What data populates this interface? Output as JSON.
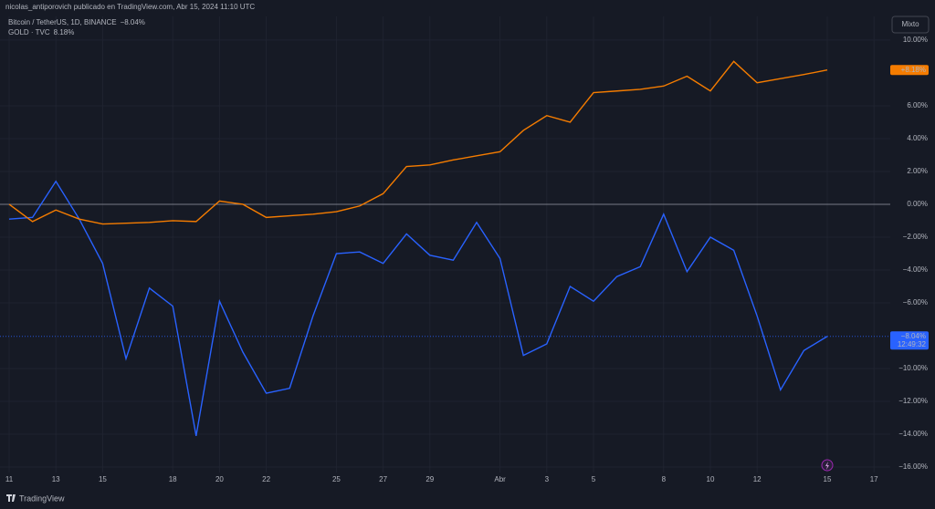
{
  "chart_data": {
    "type": "line",
    "title": "nicolas_antiporovich publicado en TradingView.com, Abr 15, 2024 11:10 UTC",
    "mode_button": "Mixto",
    "brand": "TradingView",
    "categories": [
      "11",
      null,
      "13",
      null,
      "15",
      null,
      null,
      "18",
      null,
      "20",
      null,
      "22",
      null,
      null,
      "25",
      null,
      "27",
      null,
      "29",
      null,
      null,
      "Abr",
      null,
      "3",
      null,
      "5",
      null,
      null,
      "8",
      null,
      "10",
      null,
      "12",
      null,
      null,
      "15",
      null,
      "17"
    ],
    "series": [
      {
        "name": "Bitcoin / TetherUS, 1D, BINANCE",
        "color": "#2962ff",
        "legend_value": "−8.04%",
        "axis_label": "−8.04%",
        "countdown": "12:49:32",
        "values": [
          -0.9,
          -0.8,
          1.4,
          -0.9,
          -3.6,
          -9.4,
          -5.1,
          -6.2,
          -14.1,
          -5.9,
          -9.0,
          -11.5,
          -11.2,
          -6.8,
          -3.0,
          -2.9,
          -3.6,
          -1.8,
          -3.1,
          -3.4,
          -1.1,
          -3.3,
          -9.2,
          -8.5,
          -5.0,
          -5.9,
          -4.4,
          -3.8,
          -0.6,
          -4.1,
          -2.0,
          -2.8,
          -6.8,
          -11.3,
          -8.9,
          -8.04,
          null,
          null
        ]
      },
      {
        "name": "GOLD · TVC",
        "color": "#f57c00",
        "legend_value": "8.18%",
        "axis_label": "+8.18%",
        "values": [
          0.0,
          -1.05,
          -0.35,
          -0.9,
          -1.2,
          -1.15,
          -1.1,
          -1.0,
          -1.05,
          0.2,
          0.0,
          -0.8,
          -0.7,
          -0.6,
          -0.45,
          -0.1,
          0.65,
          2.3,
          2.4,
          2.7,
          2.95,
          3.2,
          4.5,
          5.4,
          5.0,
          6.8,
          6.9,
          7.0,
          7.2,
          7.8,
          6.9,
          8.7,
          7.4,
          7.65,
          7.9,
          8.18,
          null,
          null
        ]
      }
    ],
    "ylim": [
      -16.33,
      11.44
    ],
    "yticks": [
      {
        "value": 10,
        "label": "10.00%"
      },
      {
        "value": 6,
        "label": "6.00%"
      },
      {
        "value": 4,
        "label": "4.00%"
      },
      {
        "value": 2,
        "label": "2.00%"
      },
      {
        "value": 0,
        "label": "0.00%"
      },
      {
        "value": -2,
        "label": "−2.00%"
      },
      {
        "value": -4,
        "label": "−4.00%"
      },
      {
        "value": -6,
        "label": "−6.00%"
      },
      {
        "value": -10,
        "label": "−10.00%"
      },
      {
        "value": -12,
        "label": "−12.00%"
      },
      {
        "value": -14,
        "label": "−14.00%"
      },
      {
        "value": -16,
        "label": "−16.00%"
      }
    ],
    "grid": true
  }
}
